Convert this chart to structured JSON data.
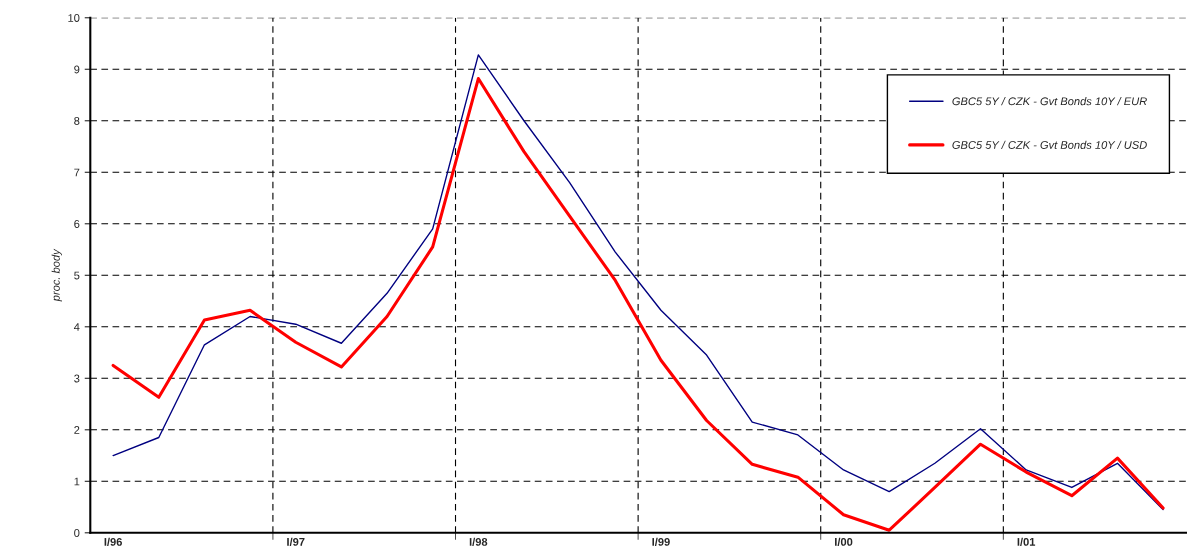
{
  "chart_data": {
    "type": "line",
    "ylabel": "proc. body",
    "categories": [
      "I/96",
      null,
      null,
      null,
      "I/97",
      null,
      null,
      null,
      "I/98",
      null,
      null,
      null,
      "I/99",
      null,
      null,
      null,
      "I/00",
      null,
      null,
      null,
      "I/01",
      null,
      null,
      null
    ],
    "series": [
      {
        "name": "GBC5 5Y / CZK - Gvt Bonds 10Y / EUR",
        "color": "#000080",
        "values": [
          1.5,
          1.85,
          3.65,
          4.2,
          4.05,
          3.68,
          4.65,
          5.9,
          9.28,
          8.0,
          6.8,
          5.45,
          4.32,
          3.45,
          2.15,
          1.9,
          1.22,
          0.8,
          1.35,
          2.02,
          1.22,
          0.88,
          1.35,
          0.45
        ]
      },
      {
        "name": "GBC5 5Y / CZK - Gvt Bonds 10Y / USD",
        "color": "#ff0000",
        "values": [
          3.25,
          2.63,
          4.13,
          4.32,
          3.7,
          3.22,
          4.2,
          5.55,
          8.82,
          7.4,
          6.15,
          4.9,
          3.35,
          2.18,
          1.33,
          1.08,
          0.35,
          0.05,
          0.88,
          1.72,
          1.18,
          0.72,
          1.45,
          0.48
        ]
      }
    ],
    "ylim": [
      0,
      10
    ],
    "yticks": [
      0,
      1,
      2,
      3,
      4,
      5,
      6,
      7,
      8,
      9,
      10
    ],
    "grid": true,
    "legend": "top right",
    "line_style": "solid",
    "marker": "none"
  }
}
